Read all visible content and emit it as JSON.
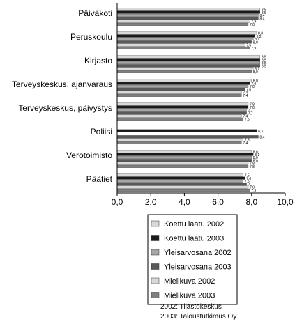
{
  "chart_data": {
    "type": "bar",
    "orientation": "horizontal",
    "categories": [
      "Päiväkoti",
      "Peruskoulu",
      "Kirjasto",
      "Terveyskeskus, ajanvaraus",
      "Terveyskeskus, päivystys",
      "Poliisi",
      "Verotoimisto",
      "Päätiet"
    ],
    "series": [
      {
        "name": "Koettu laatu 2002",
        "color": "#d9d9d9",
        "values": [
          8.5,
          8.3,
          8.5,
          8.0,
          7.8,
          null,
          8.0,
          7.5
        ]
      },
      {
        "name": "Koettu laatu 2003",
        "color": "#1a1a1a",
        "values": [
          8.5,
          8.2,
          8.5,
          7.9,
          7.8,
          8.3,
          8.1,
          7.6
        ]
      },
      {
        "name": "Yleisarvosana 2002",
        "color": "#a6a6a6",
        "values": [
          8.4,
          8.1,
          8.5,
          7.8,
          7.7,
          null,
          8.0,
          7.5
        ]
      },
      {
        "name": "Yleisarvosana 2003",
        "color": "#595959",
        "values": [
          8.4,
          8.0,
          8.5,
          7.6,
          7.7,
          8.4,
          8.0,
          7.7
        ]
      },
      {
        "name": "Mielikuva 2002",
        "color": "#d9d9d9",
        "values": [
          7.9,
          7.6,
          8.1,
          7.4,
          7.4,
          7.5,
          7.8,
          7.8
        ]
      },
      {
        "name": "Mielikuva 2003",
        "color": "#7f7f7f",
        "values": [
          7.8,
          7.9,
          8.0,
          7.4,
          7.5,
          7.4,
          7.8,
          7.9
        ]
      }
    ],
    "xlim": [
      0,
      10
    ],
    "xticks": [
      "0,0",
      "2,0",
      "4,0",
      "6,0",
      "8,0",
      "10,0"
    ],
    "grid": false,
    "legend": "bottom"
  },
  "sources": [
    "2002: Tilastokeskus",
    "2003: Taloustutkimus Oy"
  ]
}
